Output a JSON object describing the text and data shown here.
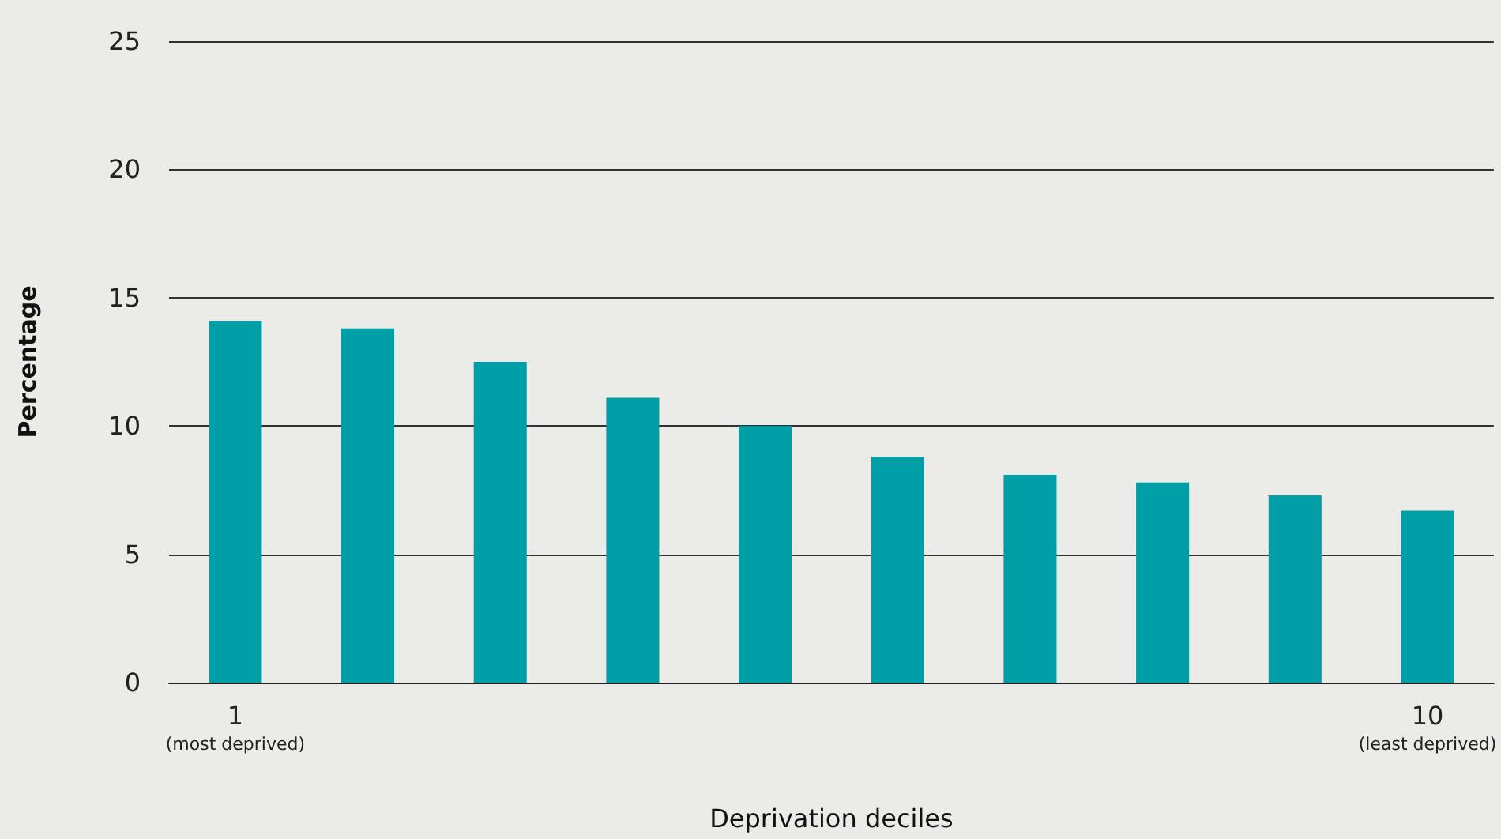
{
  "chart_data": {
    "type": "bar",
    "xlabel": "Deprivation deciles",
    "ylabel": "Percentage",
    "categories": [
      "1\n(most deprived)",
      null,
      null,
      null,
      null,
      null,
      null,
      null,
      null,
      "10\n(least deprived)"
    ],
    "values": [
      14.1,
      13.8,
      12.5,
      11.1,
      10.0,
      8.8,
      8.1,
      7.8,
      7.3,
      6.7
    ],
    "color": "#009fa8",
    "ylim": [
      0,
      25
    ],
    "yticks": [
      0,
      5,
      10,
      15,
      20,
      25
    ],
    "grid": "y"
  }
}
